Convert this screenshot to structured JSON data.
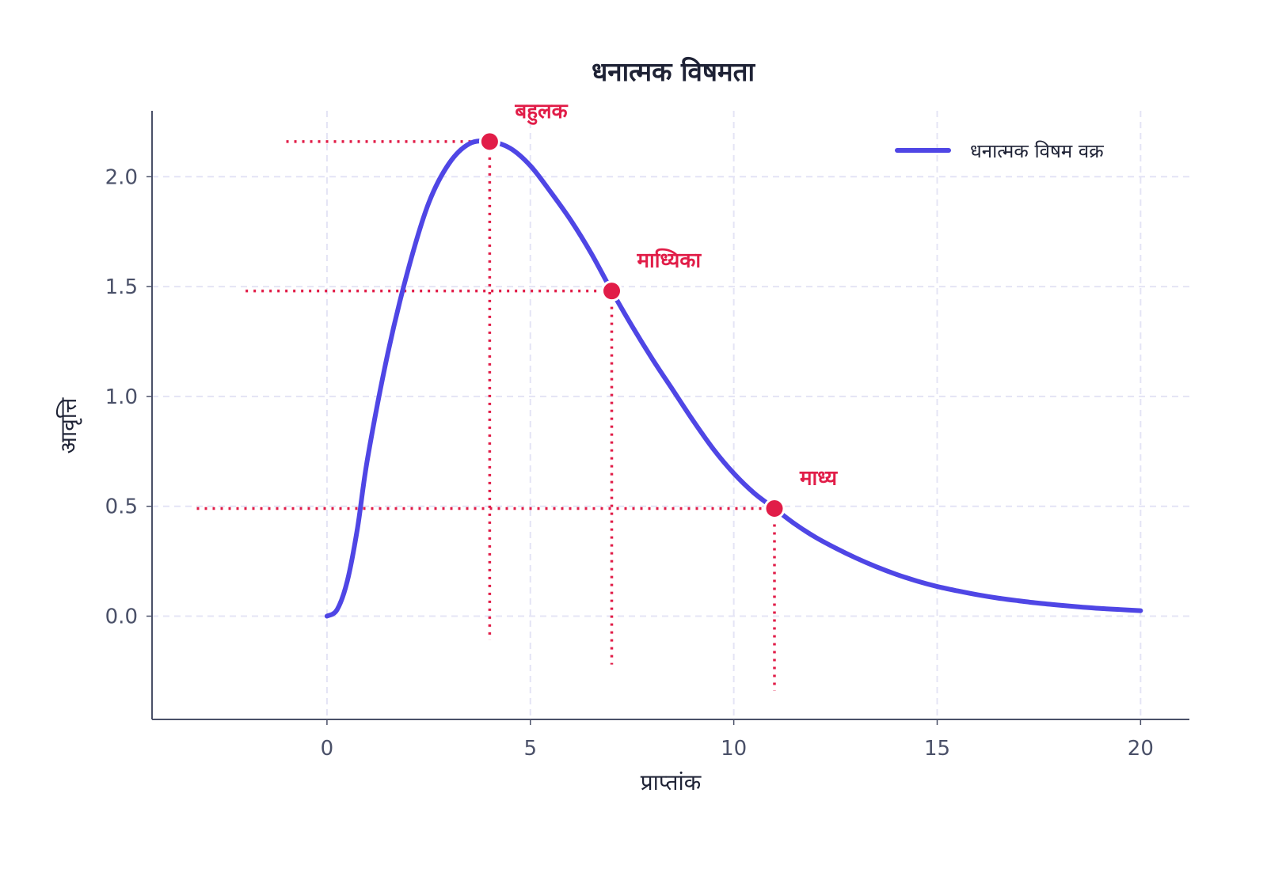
{
  "chart_data": {
    "type": "line",
    "title": "धनात्मक विषमता",
    "xlabel": "प्राप्तांक",
    "ylabel": "आवृत्ति",
    "xlim": [
      -4.3,
      21.2
    ],
    "ylim": [
      -0.47,
      2.3
    ],
    "xticks": [
      0,
      5,
      10,
      15,
      20
    ],
    "yticks": [
      0.0,
      0.5,
      1.0,
      1.5,
      2.0
    ],
    "xtick_labels": [
      "0",
      "5",
      "10",
      "15",
      "20"
    ],
    "ytick_labels": [
      "0.0",
      "0.5",
      "1.0",
      "1.5",
      "2.0"
    ],
    "grid": true,
    "legend_position": "top-right",
    "series": [
      {
        "name": "धनात्मक विषम वक्र",
        "color": "#4f46e5",
        "x": [
          0,
          0.25,
          0.5,
          0.75,
          1,
          1.5,
          2,
          2.5,
          3,
          3.5,
          4,
          4.5,
          5,
          5.5,
          6,
          6.5,
          7,
          7.5,
          8,
          8.5,
          9,
          9.5,
          10,
          10.5,
          11,
          11.5,
          12,
          12.5,
          13,
          13.5,
          14,
          14.5,
          15,
          15.5,
          16,
          16.5,
          17,
          17.5,
          18,
          18.5,
          19,
          19.5,
          20
        ],
        "y": [
          0.0,
          0.03,
          0.16,
          0.4,
          0.72,
          1.2,
          1.58,
          1.88,
          2.06,
          2.15,
          2.16,
          2.13,
          2.05,
          1.93,
          1.8,
          1.65,
          1.48,
          1.32,
          1.17,
          1.03,
          0.89,
          0.76,
          0.65,
          0.56,
          0.49,
          0.42,
          0.36,
          0.31,
          0.265,
          0.225,
          0.19,
          0.16,
          0.135,
          0.115,
          0.097,
          0.082,
          0.07,
          0.059,
          0.05,
          0.042,
          0.035,
          0.03,
          0.025
        ]
      }
    ],
    "annotations": [
      {
        "label": "बहुलक",
        "x": 4,
        "y": 2.16,
        "vline_bottom": -0.11,
        "hline_left": -1
      },
      {
        "label": "माध्यिका",
        "x": 7,
        "y": 1.48,
        "vline_bottom": -0.22,
        "hline_left": -2
      },
      {
        "label": "माध्य",
        "x": 11,
        "y": 0.49,
        "vline_bottom": -0.34,
        "hline_left": -3.2
      }
    ],
    "annotation_color": "#e11d48",
    "grid_color": "#e4e4f5",
    "axis_color": "#4a5068"
  }
}
